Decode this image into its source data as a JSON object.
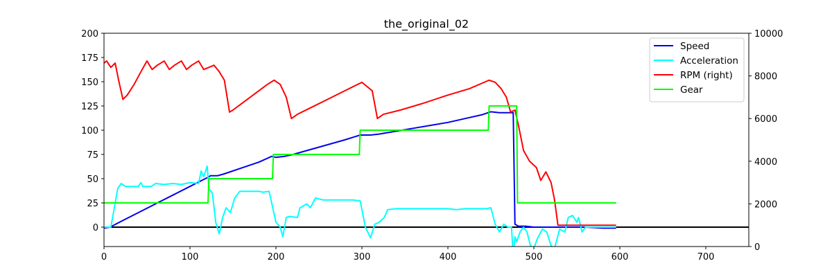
{
  "chart_data": {
    "type": "line",
    "title": "the_original_02",
    "xlabel": "",
    "ylabel": "",
    "y2label": "",
    "xlim": [
      0,
      750
    ],
    "ylim": [
      -20,
      200
    ],
    "y2lim": [
      0,
      10000
    ],
    "x_ticks": [
      0,
      100,
      200,
      300,
      400,
      500,
      600,
      700
    ],
    "y_ticks": [
      0,
      25,
      50,
      75,
      100,
      125,
      150,
      175,
      200
    ],
    "y2_ticks": [
      0,
      2000,
      4000,
      6000,
      8000,
      10000
    ],
    "grid": false,
    "legend_position": "top-right",
    "zero_line": {
      "y": 0,
      "color": "#000000"
    },
    "series": [
      {
        "name": "Speed",
        "axis": "left",
        "color": "#0000ee",
        "points": [
          [
            0,
            -1
          ],
          [
            7,
            0
          ],
          [
            20,
            6
          ],
          [
            40,
            15
          ],
          [
            60,
            24
          ],
          [
            80,
            33
          ],
          [
            100,
            42
          ],
          [
            120,
            51
          ],
          [
            124,
            53
          ],
          [
            132,
            53
          ],
          [
            140,
            55
          ],
          [
            160,
            61
          ],
          [
            180,
            67
          ],
          [
            195,
            73
          ],
          [
            200,
            72
          ],
          [
            210,
            73
          ],
          [
            220,
            75
          ],
          [
            240,
            80
          ],
          [
            260,
            85
          ],
          [
            280,
            90
          ],
          [
            298,
            95
          ],
          [
            310,
            95
          ],
          [
            320,
            96
          ],
          [
            340,
            99
          ],
          [
            360,
            102
          ],
          [
            380,
            105
          ],
          [
            400,
            108
          ],
          [
            420,
            112
          ],
          [
            440,
            116
          ],
          [
            450,
            119
          ],
          [
            460,
            118
          ],
          [
            470,
            118
          ],
          [
            476,
            118
          ],
          [
            478,
            3
          ],
          [
            482,
            1
          ],
          [
            490,
            1
          ],
          [
            500,
            0
          ],
          [
            510,
            0
          ],
          [
            530,
            0
          ],
          [
            545,
            0
          ],
          [
            560,
            0
          ],
          [
            580,
            -1
          ],
          [
            595,
            -1
          ]
        ]
      },
      {
        "name": "Acceleration",
        "axis": "left",
        "color": "#00ffff",
        "points": [
          [
            0,
            0
          ],
          [
            8,
            0
          ],
          [
            12,
            20
          ],
          [
            16,
            40
          ],
          [
            20,
            45
          ],
          [
            25,
            42
          ],
          [
            30,
            42
          ],
          [
            40,
            42
          ],
          [
            43,
            46
          ],
          [
            45,
            42
          ],
          [
            55,
            42
          ],
          [
            60,
            45
          ],
          [
            70,
            44
          ],
          [
            80,
            45
          ],
          [
            90,
            44
          ],
          [
            100,
            46
          ],
          [
            110,
            45
          ],
          [
            113,
            58
          ],
          [
            116,
            52
          ],
          [
            120,
            63
          ],
          [
            122,
            40
          ],
          [
            126,
            35
          ],
          [
            130,
            5
          ],
          [
            134,
            -7
          ],
          [
            138,
            10
          ],
          [
            142,
            20
          ],
          [
            147,
            15
          ],
          [
            152,
            30
          ],
          [
            158,
            37
          ],
          [
            170,
            37
          ],
          [
            180,
            37
          ],
          [
            185,
            36
          ],
          [
            192,
            37
          ],
          [
            200,
            5
          ],
          [
            205,
            0
          ],
          [
            208,
            -10
          ],
          [
            212,
            10
          ],
          [
            216,
            11
          ],
          [
            225,
            10
          ],
          [
            228,
            20
          ],
          [
            232,
            22
          ],
          [
            236,
            24
          ],
          [
            240,
            20
          ],
          [
            246,
            30
          ],
          [
            255,
            28
          ],
          [
            270,
            28
          ],
          [
            290,
            28
          ],
          [
            298,
            27
          ],
          [
            304,
            0
          ],
          [
            310,
            -11
          ],
          [
            315,
            3
          ],
          [
            320,
            5
          ],
          [
            326,
            10
          ],
          [
            330,
            18
          ],
          [
            340,
            19
          ],
          [
            355,
            19
          ],
          [
            380,
            19
          ],
          [
            400,
            19
          ],
          [
            410,
            18
          ],
          [
            420,
            19
          ],
          [
            445,
            19
          ],
          [
            450,
            20
          ],
          [
            455,
            3
          ],
          [
            460,
            -5
          ],
          [
            465,
            3
          ],
          [
            470,
            0
          ],
          [
            474,
            0
          ],
          [
            476,
            -30
          ],
          [
            478,
            -10
          ],
          [
            480,
            -15
          ],
          [
            484,
            -5
          ],
          [
            488,
            0
          ],
          [
            492,
            -5
          ],
          [
            496,
            -19
          ],
          [
            500,
            -22
          ],
          [
            504,
            -12
          ],
          [
            510,
            -2
          ],
          [
            515,
            -5
          ],
          [
            520,
            -19
          ],
          [
            524,
            -22
          ],
          [
            530,
            -2
          ],
          [
            536,
            -5
          ],
          [
            540,
            10
          ],
          [
            545,
            12
          ],
          [
            550,
            5
          ],
          [
            552,
            10
          ],
          [
            556,
            -5
          ],
          [
            560,
            0
          ],
          [
            570,
            0
          ],
          [
            580,
            0
          ],
          [
            595,
            0
          ]
        ]
      },
      {
        "name": "RPM (right)",
        "axis": "right",
        "color": "#ff0000",
        "points": [
          [
            0,
            8600
          ],
          [
            3,
            8700
          ],
          [
            8,
            8400
          ],
          [
            13,
            8600
          ],
          [
            17,
            7800
          ],
          [
            22,
            6900
          ],
          [
            27,
            7100
          ],
          [
            35,
            7600
          ],
          [
            43,
            8200
          ],
          [
            50,
            8700
          ],
          [
            56,
            8300
          ],
          [
            62,
            8500
          ],
          [
            70,
            8700
          ],
          [
            76,
            8300
          ],
          [
            82,
            8500
          ],
          [
            90,
            8700
          ],
          [
            96,
            8300
          ],
          [
            102,
            8500
          ],
          [
            110,
            8700
          ],
          [
            116,
            8300
          ],
          [
            122,
            8400
          ],
          [
            128,
            8500
          ],
          [
            134,
            8200
          ],
          [
            140,
            7800
          ],
          [
            146,
            6300
          ],
          [
            150,
            6400
          ],
          [
            160,
            6700
          ],
          [
            170,
            7000
          ],
          [
            180,
            7300
          ],
          [
            190,
            7600
          ],
          [
            198,
            7800
          ],
          [
            205,
            7600
          ],
          [
            212,
            7000
          ],
          [
            218,
            6000
          ],
          [
            225,
            6200
          ],
          [
            240,
            6500
          ],
          [
            260,
            6900
          ],
          [
            280,
            7300
          ],
          [
            300,
            7700
          ],
          [
            312,
            7300
          ],
          [
            318,
            6000
          ],
          [
            325,
            6200
          ],
          [
            345,
            6400
          ],
          [
            370,
            6700
          ],
          [
            400,
            7100
          ],
          [
            425,
            7400
          ],
          [
            448,
            7800
          ],
          [
            455,
            7700
          ],
          [
            462,
            7400
          ],
          [
            468,
            7000
          ],
          [
            473,
            6300
          ],
          [
            478,
            6400
          ],
          [
            482,
            5700
          ],
          [
            488,
            4500
          ],
          [
            495,
            4000
          ],
          [
            503,
            3700
          ],
          [
            508,
            3100
          ],
          [
            514,
            3500
          ],
          [
            520,
            3000
          ],
          [
            524,
            2200
          ],
          [
            528,
            1000
          ],
          [
            540,
            1000
          ],
          [
            560,
            1000
          ],
          [
            580,
            1000
          ],
          [
            595,
            1000
          ]
        ]
      },
      {
        "name": "Gear",
        "axis": "left",
        "color": "#00ff00",
        "points": [
          [
            0,
            25
          ],
          [
            121,
            25
          ],
          [
            122,
            50
          ],
          [
            196,
            50
          ],
          [
            197,
            75
          ],
          [
            297,
            75
          ],
          [
            298,
            100
          ],
          [
            447,
            100
          ],
          [
            448,
            125
          ],
          [
            480,
            125
          ],
          [
            481,
            25
          ],
          [
            595,
            25
          ]
        ]
      }
    ]
  }
}
